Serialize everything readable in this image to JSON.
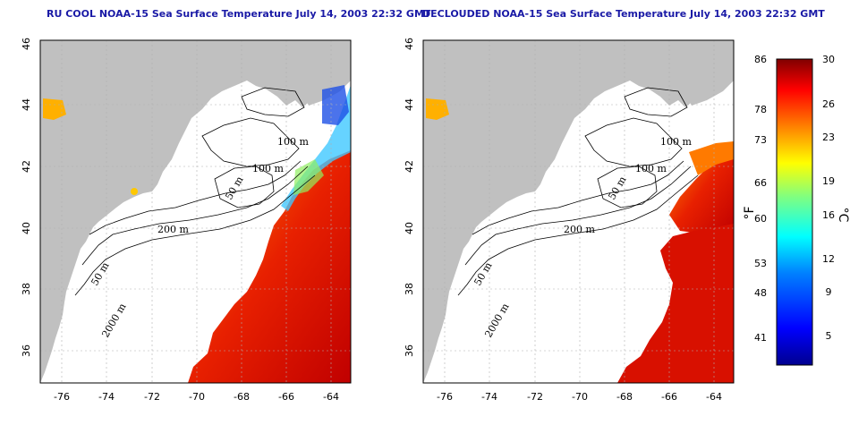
{
  "titles": {
    "left": "RU COOL NOAA-15 Sea Surface Temperature July 14, 2003 22:32 GMT",
    "right": "DECLOUDED NOAA-15 Sea Surface Temperature July 14, 2003 22:32 GMT"
  },
  "axes": {
    "lon_labels": [
      "-76",
      "-74",
      "-72",
      "-70",
      "-68",
      "-66",
      "-64"
    ],
    "lat_labels": [
      "36",
      "38",
      "40",
      "42",
      "44",
      "46"
    ]
  },
  "contour_labels": {
    "left": [
      "100 m",
      "100 m",
      "50 m",
      "200 m",
      "50 m",
      "2000 m"
    ],
    "right": [
      "100 m",
      "100 m",
      "50 m",
      "200 m",
      "50 m",
      "2000 m"
    ]
  },
  "colorbar": {
    "fahrenheit_labels": [
      "86",
      "78",
      "73",
      "66",
      "60",
      "53",
      "48",
      "41"
    ],
    "celsius_labels": [
      "30",
      "26",
      "23",
      "19",
      "16",
      "12",
      "9",
      "5"
    ],
    "fahrenheit_unit": "°F",
    "celsius_unit": "°C",
    "range_celsius": [
      2,
      30
    ],
    "colors": [
      "#00008f",
      "#0000ff",
      "#0080ff",
      "#00ffff",
      "#80ff80",
      "#ffff00",
      "#ff8000",
      "#ff0000",
      "#800000"
    ]
  },
  "colors": {
    "land": "#c0c0c0",
    "title": "#1a1aa6",
    "grid": "#b0b0b0"
  }
}
